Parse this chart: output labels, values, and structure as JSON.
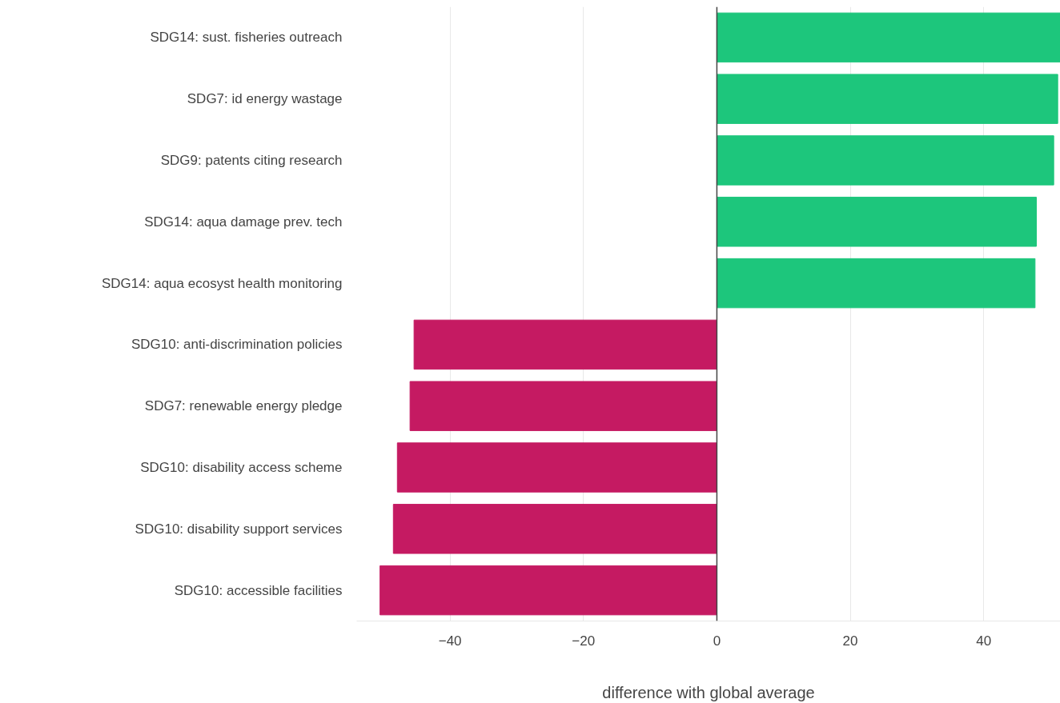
{
  "chart_data": {
    "type": "bar",
    "orientation": "horizontal",
    "xlabel": "difference with global average",
    "categories": [
      "SDG14: sust. fisheries outreach",
      "SDG7: id energy wastage",
      "SDG9: patents citing research",
      "SDG14: aqua damage prev. tech",
      "SDG14: aqua ecosyst health monitoring",
      "SDG10: anti-discrimination policies",
      "SDG7: renewable energy pledge",
      "SDG10: disability access scheme",
      "SDG10: disability support services",
      "SDG10: accessible facilities"
    ],
    "values": [
      51.5,
      51.1,
      50.5,
      47.9,
      47.7,
      -45.4,
      -46.0,
      -47.9,
      -48.5,
      -50.5
    ],
    "colors": [
      "#1dc67c",
      "#1dc67c",
      "#1dc67c",
      "#1dc67c",
      "#1dc67c",
      "#c51a62",
      "#c51a62",
      "#c51a62",
      "#c51a62",
      "#c51a62"
    ],
    "xlim": [
      -54,
      51.5
    ],
    "xticks": [
      {
        "value": -40,
        "label": "−40"
      },
      {
        "value": -20,
        "label": "−20"
      },
      0,
      20,
      40
    ],
    "ref_lines": [
      {
        "axis": "x",
        "value": 0,
        "color": "#444444"
      }
    ],
    "grid": "x"
  }
}
